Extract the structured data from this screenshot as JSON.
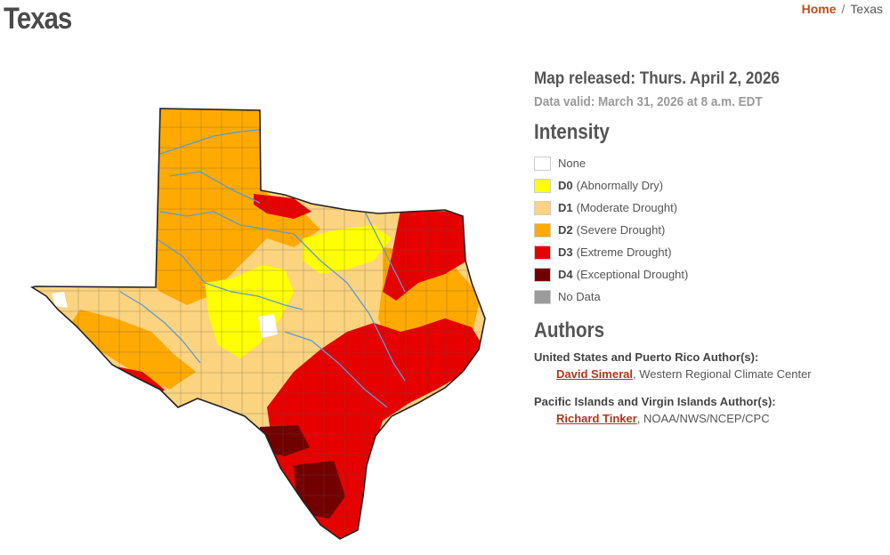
{
  "header": {
    "title": "Texas",
    "breadcrumb": {
      "home": "Home",
      "separator": "/",
      "current": "Texas"
    }
  },
  "map": {
    "region": "Texas",
    "colors": {
      "none": "#ffffff",
      "d0": "#ffff00",
      "d1": "#fcd37f",
      "d2": "#ffaa00",
      "d3": "#e60000",
      "d4": "#730000",
      "no_data": "#9b9b9b",
      "rivers": "#5b9bd5",
      "borders": "#333333"
    }
  },
  "info": {
    "released": "Map released: Thurs. April 2, 2026",
    "valid": "Data valid: March 31, 2026 at 8 a.m. EDT"
  },
  "intensity": {
    "heading": "Intensity",
    "items": [
      {
        "code": "",
        "label": "None",
        "color": "#ffffff"
      },
      {
        "code": "D0",
        "label": "(Abnormally Dry)",
        "color": "#ffff00"
      },
      {
        "code": "D1",
        "label": "(Moderate Drought)",
        "color": "#fcd37f"
      },
      {
        "code": "D2",
        "label": "(Severe Drought)",
        "color": "#ffaa00"
      },
      {
        "code": "D3",
        "label": "(Extreme Drought)",
        "color": "#e60000"
      },
      {
        "code": "D4",
        "label": "(Exceptional Drought)",
        "color": "#730000"
      },
      {
        "code": "",
        "label": "No Data",
        "color": "#9b9b9b"
      }
    ]
  },
  "authors": {
    "heading": "Authors",
    "groups": [
      {
        "title": "United States and Puerto Rico Author(s):",
        "name": "David Simeral",
        "affiliation": ", Western Regional Climate Center"
      },
      {
        "title": "Pacific Islands and Virgin Islands Author(s):",
        "name": "Richard Tinker",
        "affiliation": ", NOAA/NWS/NCEP/CPC"
      }
    ]
  }
}
